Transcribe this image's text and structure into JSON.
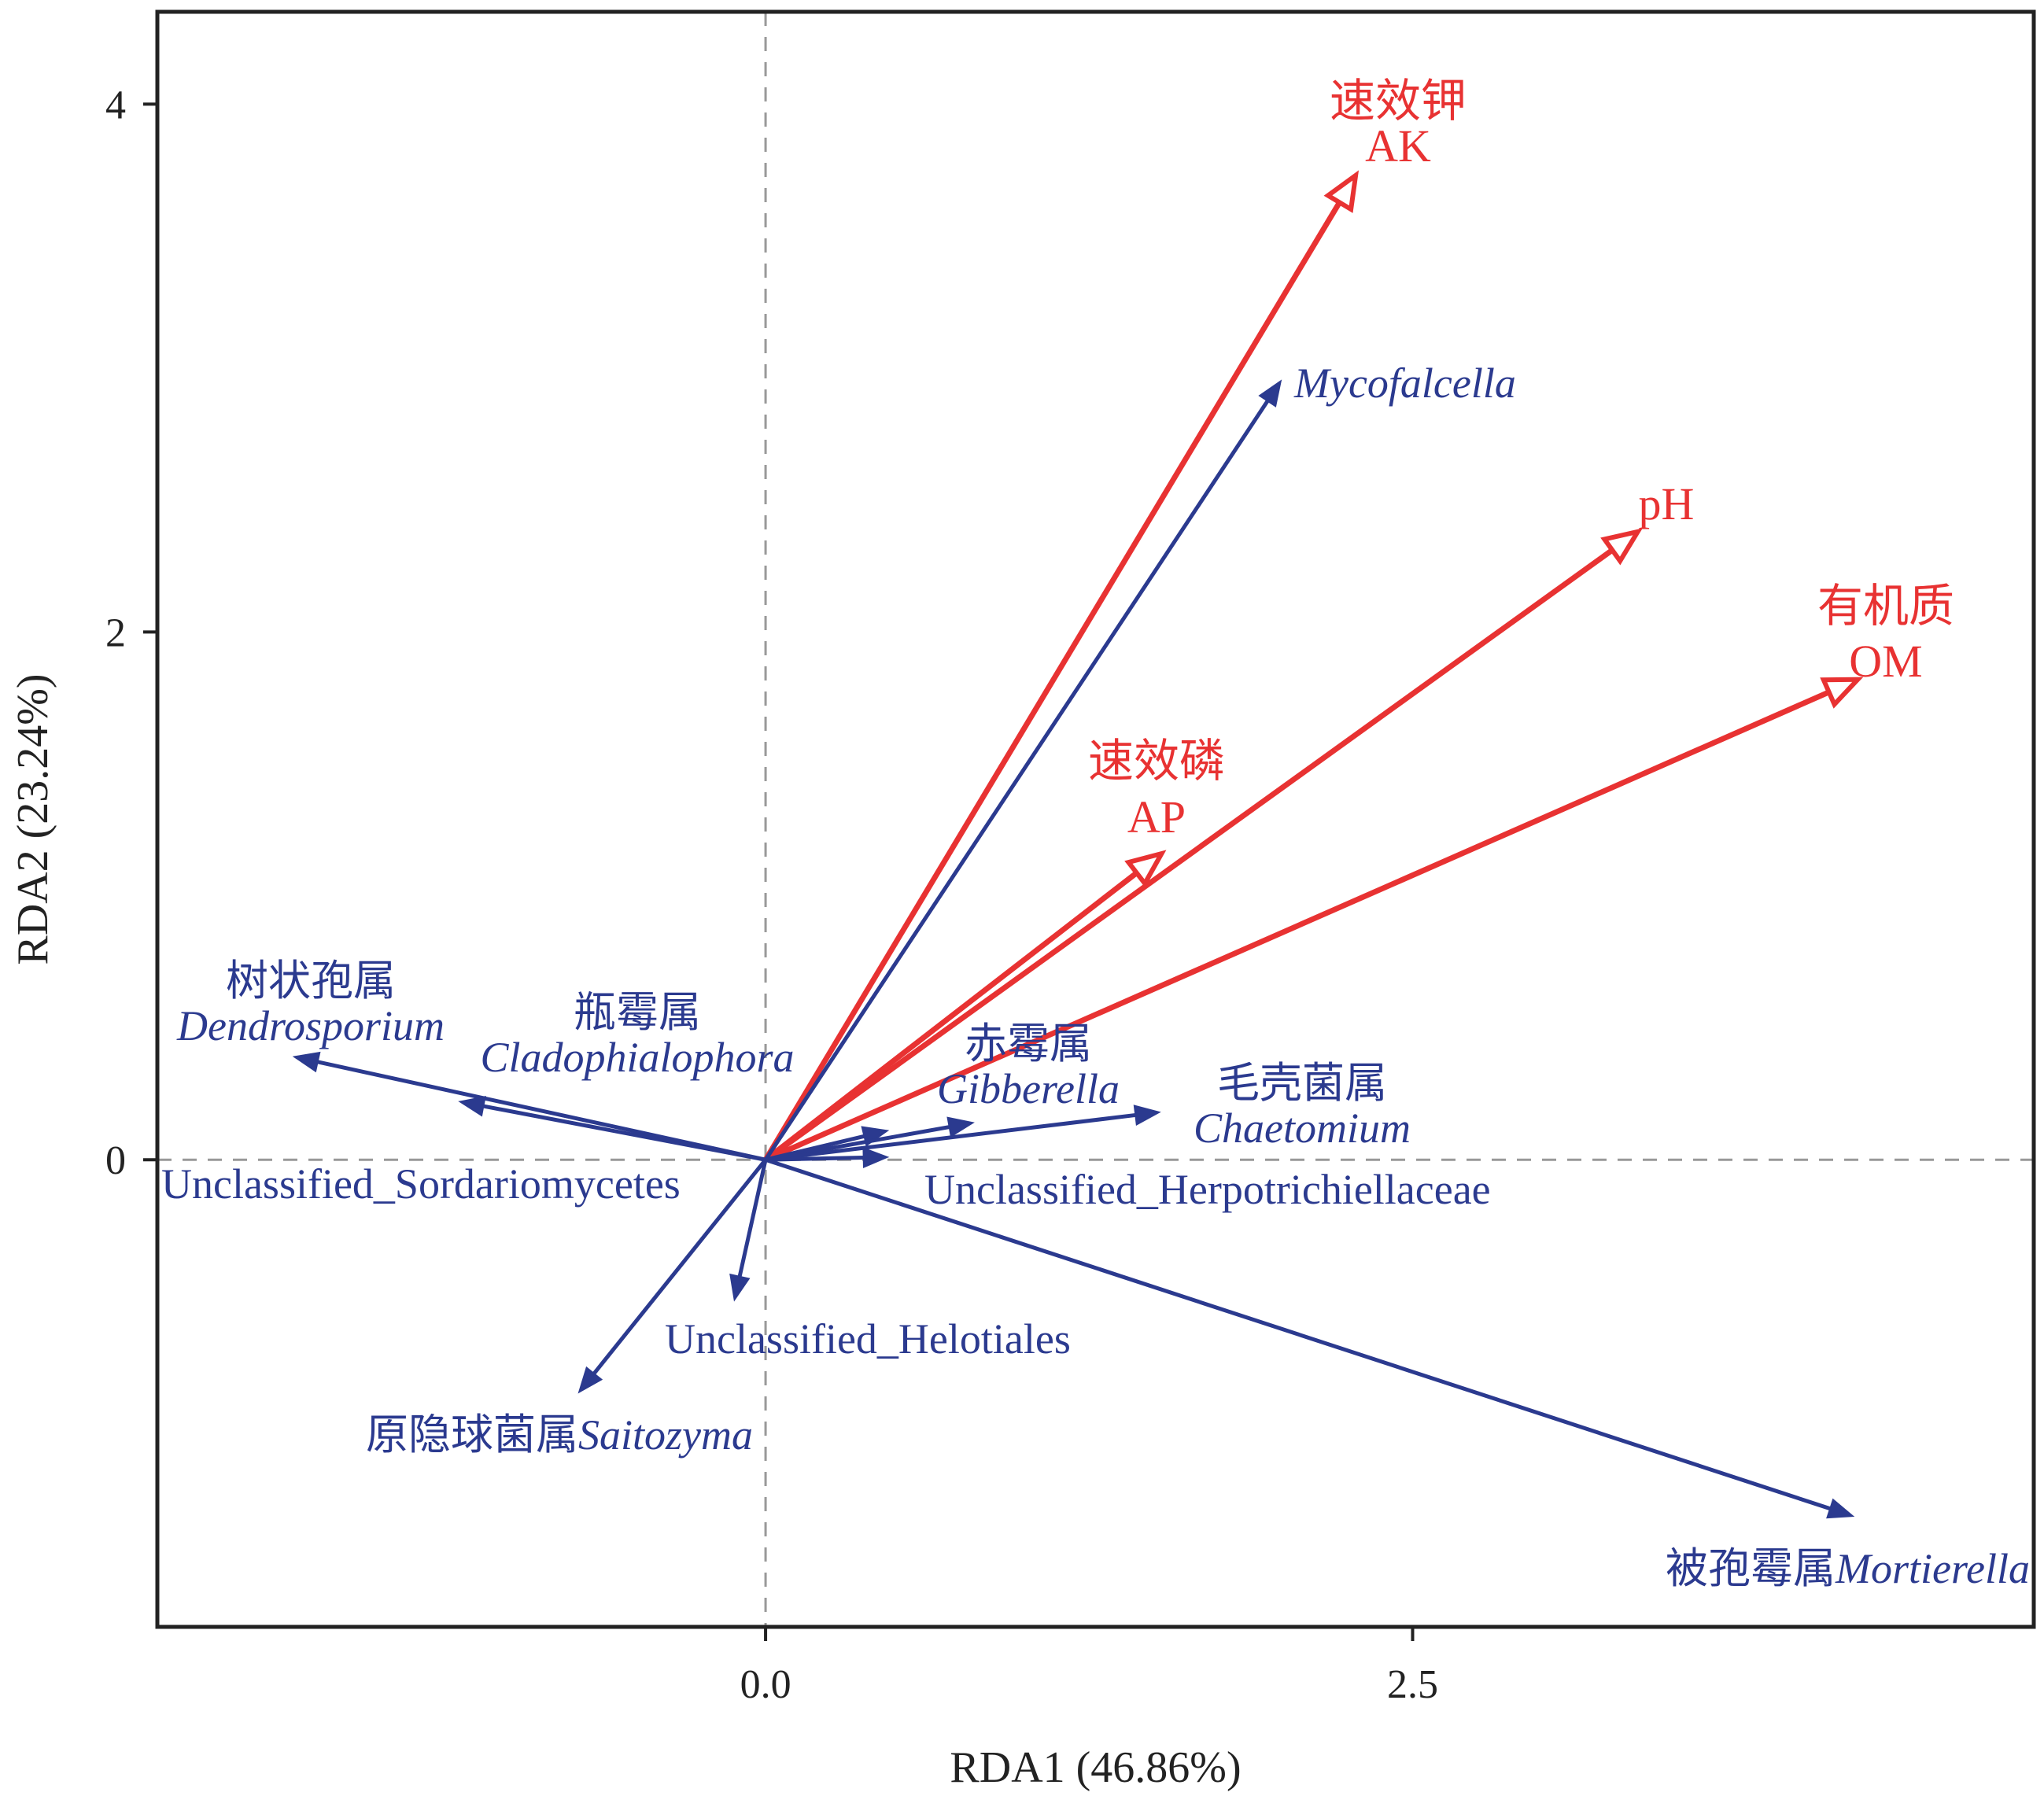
{
  "chart_data": {
    "type": "rda-biplot",
    "xlabel": "RDA1 (46.86%)",
    "ylabel": "RDA2 (23.24%)",
    "xlim": [
      -2.35,
      4.9
    ],
    "ylim": [
      -1.77,
      4.35
    ],
    "x_ticks": [
      {
        "value": 0.0,
        "label": "0.0"
      },
      {
        "value": 2.5,
        "label": "2.5"
      }
    ],
    "y_ticks": [
      {
        "value": 0,
        "label": "0"
      },
      {
        "value": 2,
        "label": "2"
      },
      {
        "value": 4,
        "label": "4"
      }
    ],
    "reference_lines": {
      "x": 0,
      "y": 0,
      "style": "dashed"
    },
    "colors": {
      "environment": "#e83232",
      "species": "#2b3a8f",
      "axes": "#222222",
      "reference": "#999999"
    },
    "environment_vectors": [
      {
        "id": "ak",
        "x": 2.28,
        "y": 3.73,
        "label_cn": "速效钾",
        "label_en": "AK"
      },
      {
        "id": "ph",
        "x": 3.37,
        "y": 2.38,
        "label_cn": "",
        "label_en": "pH"
      },
      {
        "id": "om",
        "x": 4.22,
        "y": 1.82,
        "label_cn": "有机质",
        "label_en": "OM"
      },
      {
        "id": "ap",
        "x": 1.53,
        "y": 1.16,
        "label_cn": "速效磷",
        "label_en": "AP"
      }
    ],
    "species_vectors": [
      {
        "id": "mycofalcella",
        "x": 1.99,
        "y": 2.95,
        "label_cn": "",
        "label_en": "Mycofalcella"
      },
      {
        "id": "dendrosporium",
        "x": -1.82,
        "y": 0.39,
        "label_cn": "树状孢属",
        "label_en": "Dendrosporium"
      },
      {
        "id": "unclassified-sordariomycetes",
        "x": -1.18,
        "y": 0.22,
        "label_cn": "",
        "label_en": "Unclassified_Sordariomycetes"
      },
      {
        "id": "cladophialophora",
        "x": 0.47,
        "y": 0.11,
        "label_cn": "瓶霉属",
        "label_en": "Cladophialophora"
      },
      {
        "id": "gibberella",
        "x": 0.8,
        "y": 0.14,
        "label_cn": "赤霉属",
        "label_en": "Gibberella"
      },
      {
        "id": "chaetomium",
        "x": 1.52,
        "y": 0.18,
        "label_cn": "毛壳菌属",
        "label_en": "Chaetomium"
      },
      {
        "id": "unclassified-herpotrichiellaceae",
        "x": 0.47,
        "y": 0.01,
        "label_cn": "",
        "label_en": "Unclassified_Herpotrichiellaceae"
      },
      {
        "id": "unclassified-helotiales",
        "x": -0.12,
        "y": -0.53,
        "label_cn": "",
        "label_en": "Unclassified_Helotiales"
      },
      {
        "id": "saitozyma",
        "x": -0.72,
        "y": -0.88,
        "label_cn": "原隐球菌属",
        "label_en": "Saitozyma"
      },
      {
        "id": "mortierella",
        "x": 4.2,
        "y": -1.35,
        "label_cn": "被孢霉属",
        "label_en": "Mortierella"
      }
    ]
  }
}
